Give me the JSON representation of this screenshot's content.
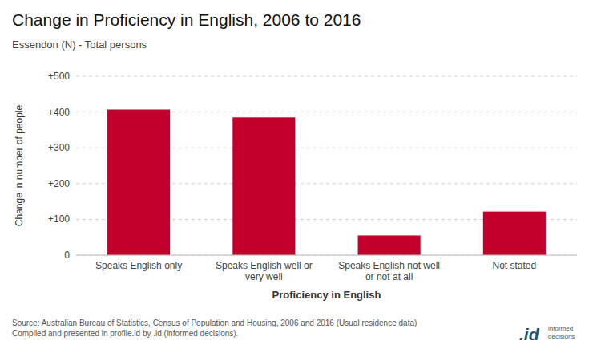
{
  "chart_data": {
    "type": "bar",
    "title": "Change in Proficiency in English, 2006 to 2016",
    "subtitle": "Essendon (N) - Total persons",
    "categories": [
      "Speaks English only",
      "Speaks English well or\nvery well",
      "Speaks English not well\nor not at all",
      "Not stated"
    ],
    "values": [
      407,
      385,
      55,
      122
    ],
    "color": "#C1002B",
    "y_label": "Change in number of people",
    "x_label": "Proficiency in English",
    "ylim": [
      0,
      500
    ],
    "yticks": [
      0,
      {
        "value": 100,
        "label": "+100"
      },
      {
        "value": 200,
        "label": "+200"
      },
      {
        "value": 300,
        "label": "+300"
      },
      {
        "value": 400,
        "label": "+400"
      },
      {
        "value": 500,
        "label": "+500"
      }
    ],
    "grid": true,
    "source": "Source: Australian Bureau of Statistics, Census of Population and Housing, 2006 and 2016 (Usual residence data)\nCompiled and presented in profile.id by .id (informed decisions).",
    "annotations": [
      ".id",
      "informed\ndecisions"
    ]
  }
}
